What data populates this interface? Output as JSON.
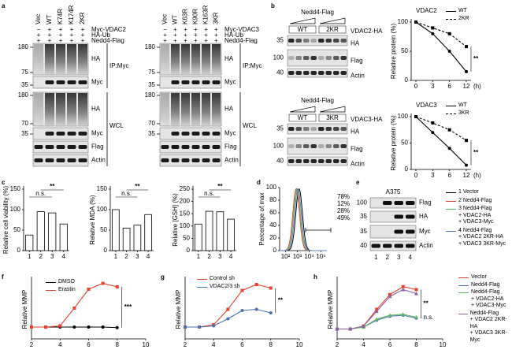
{
  "panel_labels": [
    "a",
    "b",
    "c",
    "d",
    "e",
    "f",
    "g",
    "h"
  ],
  "blot_a": [
    {
      "lanes": [
        "Vec",
        "WT",
        "K74R",
        "K174R",
        "2KR"
      ],
      "rows": [
        {
          "signs": [
            "−",
            "+",
            "+",
            "+",
            "+"
          ],
          "label": "Myc-VDAC2"
        },
        {
          "signs": [
            "+",
            "+",
            "+",
            "+",
            "+"
          ],
          "label": "HA-Ub"
        },
        {
          "signs": [
            "+",
            "+",
            "+",
            "+",
            "+"
          ],
          "label": "Nedd4-Flag"
        }
      ],
      "mw": [
        "180",
        "75",
        "35",
        "180",
        "70",
        "35"
      ],
      "bands": [
        "HA",
        "Myc",
        "HA",
        "Myc",
        "Flag",
        "Actin"
      ],
      "groups": [
        "IP:Myc",
        "WCL"
      ]
    },
    {
      "lanes": [
        "Vec",
        "WT",
        "K63R",
        "K90R",
        "K163R",
        "3KR"
      ],
      "rows": [
        {
          "signs": [
            "−",
            "+",
            "+",
            "+",
            "+",
            "+"
          ],
          "label": "Myc-VDAC3"
        },
        {
          "signs": [
            "+",
            "+",
            "+",
            "+",
            "+",
            "+"
          ],
          "label": "HA-Ub"
        },
        {
          "signs": [
            "+",
            "+",
            "+",
            "+",
            "+",
            "+"
          ],
          "label": "Nedd4-Flag"
        }
      ],
      "mw": [
        "180",
        "75",
        "35",
        "180",
        "70",
        "35"
      ],
      "bands": [
        "HA",
        "Myc",
        "HA",
        "Myc",
        "Flag",
        "Actin"
      ],
      "groups": [
        "IP:Myc",
        "WCL"
      ]
    }
  ],
  "blot_b": [
    {
      "title": "Nedd4-Flag",
      "groups": [
        "WT",
        "2KR"
      ],
      "construct": "VDAC2-HA",
      "mw": [
        "35",
        "100",
        "40"
      ],
      "bands": [
        "HA",
        "Flag",
        "Actin"
      ]
    },
    {
      "title": "Nedd4-Flag",
      "groups": [
        "WT",
        "3KR"
      ],
      "construct": "VDAC3-HA",
      "mw": [
        "35",
        "100",
        "40"
      ],
      "bands": [
        "HA",
        "Flag",
        "Actin"
      ]
    }
  ],
  "flow": {
    "ylabel": "Percentage of max",
    "ylim": [
      0,
      100
    ],
    "yticks": [
      0,
      20,
      40,
      60,
      80,
      100
    ],
    "xlim": [
      1.5,
      5.5
    ],
    "xticks": [
      {
        "value": 2,
        "label": "10²"
      },
      {
        "value": 3,
        "label": "10³"
      },
      {
        "value": 4,
        "label": "10⁴"
      },
      {
        "value": 5,
        "label": "10⁵"
      }
    ],
    "labels": [
      "78%",
      "12%",
      "28%",
      "49%"
    ],
    "colors": [
      "#000000",
      "#e8412f",
      "#5cb85c",
      "#5b7fc7"
    ]
  },
  "blot_e": {
    "title": "A375",
    "mw": [
      "100",
      "35",
      "35",
      "40"
    ],
    "bands": [
      "Flag",
      "HA",
      "Myc",
      "Actin"
    ],
    "lanes": [
      "1",
      "2",
      "3",
      "4"
    ],
    "legend": [
      {
        "name": "1 Vector",
        "color": "#000000"
      },
      {
        "name": "2 Nedd4-Flag",
        "color": "#e8412f"
      },
      {
        "name": "3 Nedd4-Flag\n+ VDAC2-HA\n+ VDAC3-Myc",
        "color": "#5cb85c"
      },
      {
        "name": "4 Nedd4-Flag\n+ VDAC2 2KR-HA\n+ VDAC3 3KR-Myc",
        "color": "#4a6fb5"
      }
    ]
  },
  "chart_data": [
    {
      "type": "line",
      "title": "VDAC2",
      "categories": [
        "0",
        "3",
        "6",
        "12"
      ],
      "xlabel": "(h)",
      "ylabel": "Relative protein (%)",
      "ylim": [
        0,
        100
      ],
      "yticks": [
        0,
        50,
        100
      ],
      "series": [
        {
          "name": "WT",
          "color": "#000000",
          "dash": false,
          "marker": "circle",
          "values": [
            100,
            80,
            50,
            15
          ]
        },
        {
          "name": "2KR",
          "color": "#000000",
          "dash": true,
          "marker": "square",
          "values": [
            100,
            90,
            80,
            58
          ]
        }
      ],
      "annotations": [
        "**"
      ]
    },
    {
      "type": "line",
      "title": "VDAC3",
      "categories": [
        "0",
        "3",
        "6",
        "12"
      ],
      "xlabel": "(h)",
      "ylabel": "Relative protein (%)",
      "ylim": [
        0,
        100
      ],
      "yticks": [
        0,
        50,
        100
      ],
      "series": [
        {
          "name": "WT",
          "color": "#000000",
          "dash": false,
          "marker": "circle",
          "values": [
            100,
            70,
            40,
            8
          ]
        },
        {
          "name": "3KR",
          "color": "#000000",
          "dash": true,
          "marker": "square",
          "values": [
            100,
            88,
            75,
            55
          ]
        }
      ],
      "annotations": [
        "**"
      ]
    },
    {
      "type": "bar",
      "ylabel": "Relative cell viability (%)",
      "categories": [
        "1",
        "2",
        "3",
        "4"
      ],
      "values": [
        38,
        95,
        92,
        65
      ],
      "color": "#ffffff",
      "ylim": [
        0,
        150
      ],
      "yticks": [
        0,
        50,
        100,
        150
      ],
      "annotations": [
        "n.s.",
        "**"
      ]
    },
    {
      "type": "bar",
      "ylabel": "Relative MDA (%)",
      "categories": [
        "1",
        "2",
        "3",
        "4"
      ],
      "values": [
        100,
        55,
        62,
        88
      ],
      "color": "#ffffff",
      "ylim": [
        0,
        150
      ],
      "yticks": [
        0,
        50,
        100,
        150
      ],
      "annotations": [
        "n.s.",
        "**"
      ]
    },
    {
      "type": "bar",
      "ylabel": "Relative [GSH] (%)",
      "categories": [
        "1",
        "2",
        "3",
        "4"
      ],
      "values": [
        108,
        160,
        158,
        128
      ],
      "color": "#ffffff",
      "ylim": [
        0,
        250
      ],
      "yticks": [
        0,
        50,
        100,
        150,
        200,
        250
      ],
      "annotations": [
        "n.s.",
        "**"
      ]
    },
    {
      "type": "line",
      "ylabel": "Relative MMP",
      "x": [
        2,
        3,
        4,
        5,
        6,
        7,
        8
      ],
      "xlim": [
        2,
        10
      ],
      "xticks": [
        2,
        4,
        6,
        8,
        10
      ],
      "ylim": [
        0,
        5
      ],
      "series": [
        {
          "name": "DMSO",
          "color": "#000000",
          "dash": false,
          "marker": "circle",
          "values": [
            1,
            1,
            1,
            1,
            1,
            1,
            0.95
          ]
        },
        {
          "name": "Erastin",
          "color": "#e8412f",
          "dash": false,
          "marker": "square",
          "values": [
            1,
            1,
            1.1,
            2.6,
            4.2,
            4.7,
            4.4
          ]
        }
      ],
      "annotations": [
        "***"
      ]
    },
    {
      "type": "line",
      "ylabel": "Relative MMP",
      "x": [
        2,
        3,
        4,
        5,
        6,
        7,
        8
      ],
      "xlim": [
        2,
        10
      ],
      "xticks": [
        2,
        4,
        6,
        8,
        10
      ],
      "ylim": [
        0,
        5
      ],
      "series": [
        {
          "name": "Control sh",
          "color": "#e8412f",
          "dash": false,
          "marker": "square",
          "values": [
            1,
            1,
            1.2,
            2.5,
            4.1,
            4.6,
            4.3
          ]
        },
        {
          "name": "VDAC2/3 sh",
          "color": "#4a6fb5",
          "dash": false,
          "marker": "circle",
          "values": [
            1,
            1,
            1.1,
            1.7,
            2.4,
            2.5,
            2.2
          ]
        }
      ],
      "annotations": [
        "**"
      ]
    },
    {
      "type": "line",
      "ylabel": "Relative MMP",
      "x": [
        2,
        3,
        4,
        5,
        6,
        7,
        8
      ],
      "xlim": [
        2,
        10
      ],
      "xticks": [
        2,
        4,
        6,
        8,
        10
      ],
      "ylim": [
        0,
        6
      ],
      "series": [
        {
          "name": "Vector",
          "color": "#e8412f",
          "dash": false,
          "marker": "square",
          "values": [
            1,
            1,
            1.3,
            3,
            4.5,
            5.3,
            5
          ]
        },
        {
          "name": "Nedd4-Flag",
          "color": "#4a6fb5",
          "dash": false,
          "marker": "circle",
          "values": [
            1,
            1,
            1.2,
            1.9,
            2.3,
            2.4,
            2.1
          ]
        },
        {
          "name": "Nedd4-Flag\n+ VDAC2-HA\n+ VDAC3-Myc",
          "color": "#5cb85c",
          "dash": false,
          "marker": "triangle",
          "values": [
            1,
            1,
            1.2,
            2,
            2.4,
            2.5,
            2.2
          ]
        },
        {
          "name": "Nedd4-Flag\n+ VDAC2 2KR-HA\n+ VDAC3 3KR-Myc",
          "color": "#8e5ea2",
          "dash": false,
          "marker": "triangle",
          "values": [
            1,
            1,
            1.3,
            2.8,
            4.3,
            5,
            4.6
          ]
        }
      ],
      "annotations": [
        "**",
        "n.s."
      ]
    }
  ]
}
